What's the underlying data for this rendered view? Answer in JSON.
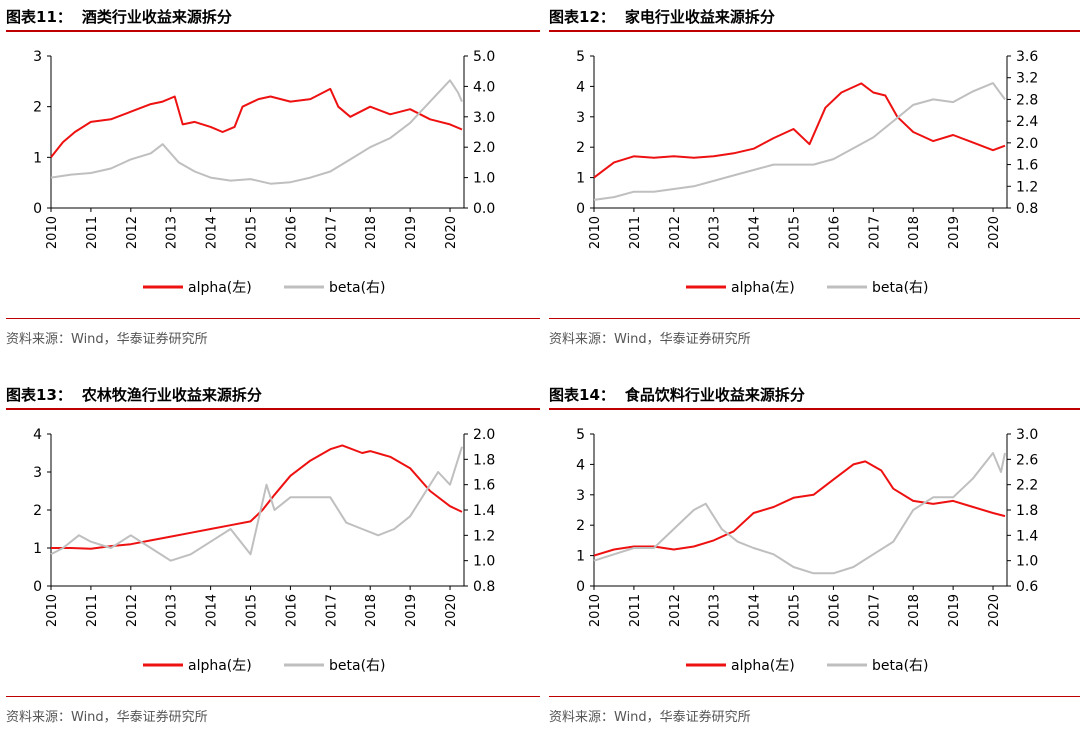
{
  "panels": [
    {
      "label": "图表",
      "number": "11",
      "sep": "：",
      "title": "酒类行业收益来源拆分",
      "source": "资料来源：Wind，华泰证券研究所"
    },
    {
      "label": "图表",
      "number": "12",
      "sep": "：",
      "title": "家电行业收益来源拆分",
      "source": "资料来源：Wind，华泰证券研究所"
    },
    {
      "label": "图表",
      "number": "13",
      "sep": "：",
      "title": "农林牧渔行业收益来源拆分",
      "source": "资料来源：Wind，华泰证券研究所"
    },
    {
      "label": "图表",
      "number": "14",
      "sep": "：",
      "title": "食品饮料行业收益来源拆分",
      "source": "资料来源：Wind，华泰证券研究所"
    }
  ],
  "colors": {
    "alpha": "#ee1111",
    "beta": "#bfbfbf",
    "rule": "#c00000"
  },
  "chart_data": [
    {
      "type": "line",
      "title": "酒类行业收益来源拆分",
      "x_ticks": [
        "2010",
        "2011",
        "2012",
        "2013",
        "2014",
        "2015",
        "2016",
        "2017",
        "2018",
        "2019",
        "2020"
      ],
      "y_left": {
        "ticks": [
          "0",
          "1",
          "2",
          "3"
        ],
        "lim": [
          0,
          3
        ]
      },
      "y_right": {
        "ticks": [
          "0.0",
          "1.0",
          "2.0",
          "3.0",
          "4.0",
          "5.0"
        ],
        "lim": [
          0,
          5
        ]
      },
      "legend": [
        "alpha(左)",
        "beta(右)"
      ],
      "legend_position": "bottom",
      "series": [
        {
          "name": "alpha(左)",
          "axis": "left",
          "x": [
            2010.0,
            2010.3,
            2010.6,
            2011.0,
            2011.5,
            2012.0,
            2012.5,
            2012.8,
            2013.1,
            2013.3,
            2013.6,
            2014.0,
            2014.3,
            2014.6,
            2014.8,
            2015.2,
            2015.5,
            2016.0,
            2016.5,
            2017.0,
            2017.2,
            2017.5,
            2018.0,
            2018.5,
            2019.0,
            2019.5,
            2020.0,
            2020.3
          ],
          "y": [
            1.0,
            1.3,
            1.5,
            1.7,
            1.75,
            1.9,
            2.05,
            2.1,
            2.2,
            1.65,
            1.7,
            1.6,
            1.5,
            1.6,
            2.0,
            2.15,
            2.2,
            2.1,
            2.15,
            2.35,
            2.0,
            1.8,
            2.0,
            1.85,
            1.95,
            1.75,
            1.65,
            1.55
          ]
        },
        {
          "name": "beta(右)",
          "axis": "right",
          "x": [
            2010.0,
            2010.5,
            2011.0,
            2011.5,
            2012.0,
            2012.5,
            2012.8,
            2013.2,
            2013.6,
            2014.0,
            2014.5,
            2015.0,
            2015.5,
            2016.0,
            2016.5,
            2017.0,
            2017.5,
            2018.0,
            2018.5,
            2019.0,
            2019.5,
            2020.0,
            2020.2,
            2020.3
          ],
          "y": [
            1.0,
            1.1,
            1.15,
            1.3,
            1.6,
            1.8,
            2.1,
            1.5,
            1.2,
            1.0,
            0.9,
            0.95,
            0.8,
            0.85,
            1.0,
            1.2,
            1.6,
            2.0,
            2.3,
            2.8,
            3.5,
            4.2,
            3.8,
            3.5
          ]
        }
      ]
    },
    {
      "type": "line",
      "title": "家电行业收益来源拆分",
      "x_ticks": [
        "2010",
        "2011",
        "2012",
        "2013",
        "2014",
        "2015",
        "2016",
        "2017",
        "2018",
        "2019",
        "2020"
      ],
      "y_left": {
        "ticks": [
          "0",
          "1",
          "2",
          "3",
          "4",
          "5"
        ],
        "lim": [
          0,
          5
        ]
      },
      "y_right": {
        "ticks": [
          "0.8",
          "1.2",
          "1.6",
          "2.0",
          "2.4",
          "2.8",
          "3.2",
          "3.6"
        ],
        "lim": [
          0.8,
          3.6
        ]
      },
      "legend": [
        "alpha(左)",
        "beta(右)"
      ],
      "legend_position": "bottom",
      "series": [
        {
          "name": "alpha(左)",
          "axis": "left",
          "x": [
            2010.0,
            2010.5,
            2011.0,
            2011.5,
            2012.0,
            2012.5,
            2013.0,
            2013.5,
            2014.0,
            2014.5,
            2015.0,
            2015.4,
            2015.8,
            2016.2,
            2016.7,
            2017.0,
            2017.3,
            2017.6,
            2018.0,
            2018.5,
            2019.0,
            2019.5,
            2020.0,
            2020.3
          ],
          "y": [
            1.0,
            1.5,
            1.7,
            1.65,
            1.7,
            1.65,
            1.7,
            1.8,
            1.95,
            2.3,
            2.6,
            2.1,
            3.3,
            3.8,
            4.1,
            3.8,
            3.7,
            3.0,
            2.5,
            2.2,
            2.4,
            2.15,
            1.9,
            2.05
          ]
        },
        {
          "name": "beta(右)",
          "axis": "right",
          "x": [
            2010.0,
            2010.5,
            2011.0,
            2011.5,
            2012.0,
            2012.5,
            2013.0,
            2013.5,
            2014.0,
            2014.5,
            2015.0,
            2015.5,
            2016.0,
            2016.5,
            2017.0,
            2017.5,
            2018.0,
            2018.5,
            2019.0,
            2019.5,
            2020.0,
            2020.2,
            2020.3
          ],
          "y": [
            0.95,
            1.0,
            1.1,
            1.1,
            1.15,
            1.2,
            1.3,
            1.4,
            1.5,
            1.6,
            1.6,
            1.6,
            1.7,
            1.9,
            2.1,
            2.4,
            2.7,
            2.8,
            2.75,
            2.95,
            3.1,
            2.9,
            2.8
          ]
        }
      ]
    },
    {
      "type": "line",
      "title": "农林牧渔行业收益来源拆分",
      "x_ticks": [
        "2010",
        "2011",
        "2012",
        "2013",
        "2014",
        "2015",
        "2016",
        "2017",
        "2018",
        "2019",
        "2020"
      ],
      "y_left": {
        "ticks": [
          "0",
          "1",
          "2",
          "3",
          "4"
        ],
        "lim": [
          0,
          4
        ]
      },
      "y_right": {
        "ticks": [
          "0.8",
          "1.0",
          "1.2",
          "1.4",
          "1.6",
          "1.8",
          "2.0"
        ],
        "lim": [
          0.8,
          2.0
        ]
      },
      "legend": [
        "alpha(左)",
        "beta(右)"
      ],
      "legend_position": "bottom",
      "series": [
        {
          "name": "alpha(左)",
          "axis": "left",
          "x": [
            2010.0,
            2010.5,
            2011.0,
            2011.5,
            2012.0,
            2012.5,
            2013.0,
            2013.5,
            2014.0,
            2014.5,
            2015.0,
            2015.3,
            2015.6,
            2016.0,
            2016.5,
            2017.0,
            2017.3,
            2017.8,
            2018.0,
            2018.5,
            2019.0,
            2019.5,
            2020.0,
            2020.3
          ],
          "y": [
            1.0,
            1.0,
            0.98,
            1.05,
            1.1,
            1.2,
            1.3,
            1.4,
            1.5,
            1.6,
            1.7,
            2.0,
            2.4,
            2.9,
            3.3,
            3.6,
            3.7,
            3.5,
            3.55,
            3.4,
            3.1,
            2.5,
            2.1,
            1.95
          ]
        },
        {
          "name": "beta(右)",
          "axis": "right",
          "x": [
            2010.0,
            2010.3,
            2010.7,
            2011.0,
            2011.5,
            2012.0,
            2012.5,
            2013.0,
            2013.5,
            2014.0,
            2014.5,
            2015.0,
            2015.4,
            2015.6,
            2016.0,
            2016.5,
            2017.0,
            2017.4,
            2017.8,
            2018.2,
            2018.6,
            2019.0,
            2019.4,
            2019.7,
            2020.0,
            2020.2,
            2020.3
          ],
          "y": [
            1.05,
            1.1,
            1.2,
            1.15,
            1.1,
            1.2,
            1.1,
            1.0,
            1.05,
            1.15,
            1.25,
            1.05,
            1.6,
            1.4,
            1.5,
            1.5,
            1.5,
            1.3,
            1.25,
            1.2,
            1.25,
            1.35,
            1.55,
            1.7,
            1.6,
            1.8,
            1.9
          ]
        }
      ]
    },
    {
      "type": "line",
      "title": "食品饮料行业收益来源拆分",
      "x_ticks": [
        "2010",
        "2011",
        "2012",
        "2013",
        "2014",
        "2015",
        "2016",
        "2017",
        "2018",
        "2019",
        "2020"
      ],
      "y_left": {
        "ticks": [
          "0",
          "1",
          "2",
          "3",
          "4",
          "5"
        ],
        "lim": [
          0,
          5
        ]
      },
      "y_right": {
        "ticks": [
          "0.6",
          "1.0",
          "1.4",
          "1.8",
          "2.2",
          "2.6",
          "3.0"
        ],
        "lim": [
          0.6,
          3.0
        ]
      },
      "legend": [
        "alpha(左)",
        "beta(右)"
      ],
      "legend_position": "bottom",
      "series": [
        {
          "name": "alpha(左)",
          "axis": "left",
          "x": [
            2010.0,
            2010.5,
            2011.0,
            2011.5,
            2012.0,
            2012.5,
            2013.0,
            2013.5,
            2014.0,
            2014.5,
            2015.0,
            2015.5,
            2016.0,
            2016.5,
            2016.8,
            2017.2,
            2017.5,
            2018.0,
            2018.5,
            2019.0,
            2019.5,
            2020.0,
            2020.3
          ],
          "y": [
            1.0,
            1.2,
            1.3,
            1.3,
            1.2,
            1.3,
            1.5,
            1.8,
            2.4,
            2.6,
            2.9,
            3.0,
            3.5,
            4.0,
            4.1,
            3.8,
            3.2,
            2.8,
            2.7,
            2.8,
            2.6,
            2.4,
            2.3
          ]
        },
        {
          "name": "beta(右)",
          "axis": "right",
          "x": [
            2010.0,
            2010.5,
            2011.0,
            2011.5,
            2012.0,
            2012.5,
            2012.8,
            2013.2,
            2013.6,
            2014.0,
            2014.5,
            2015.0,
            2015.5,
            2016.0,
            2016.5,
            2017.0,
            2017.5,
            2018.0,
            2018.5,
            2019.0,
            2019.5,
            2020.0,
            2020.2,
            2020.3
          ],
          "y": [
            1.0,
            1.1,
            1.2,
            1.2,
            1.5,
            1.8,
            1.9,
            1.5,
            1.3,
            1.2,
            1.1,
            0.9,
            0.8,
            0.8,
            0.9,
            1.1,
            1.3,
            1.8,
            2.0,
            2.0,
            2.3,
            2.7,
            2.4,
            2.7
          ]
        }
      ]
    }
  ]
}
